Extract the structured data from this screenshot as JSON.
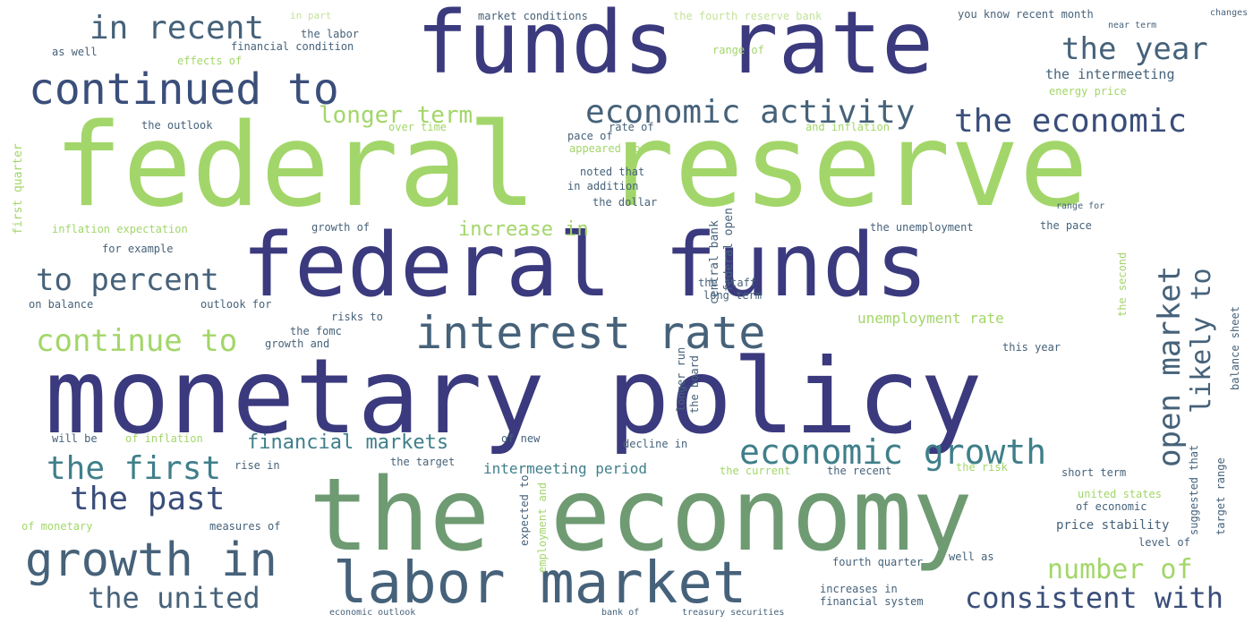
{
  "colors": {
    "indigo": "#3b3a7e",
    "navy": "#3a4e7a",
    "slate": "#46627a",
    "teal": "#3f7f8a",
    "sage": "#6f9b73",
    "lime": "#a3d66a",
    "pale": "#c4e29a"
  },
  "words": [
    {
      "text": "federal reserve",
      "color": "lime"
    },
    {
      "text": "monetary policy",
      "color": "indigo"
    },
    {
      "text": "the economy",
      "color": "sage"
    },
    {
      "text": "federal funds",
      "color": "indigo"
    },
    {
      "text": "funds rate",
      "color": "indigo"
    },
    {
      "text": "labor market",
      "color": "slate"
    },
    {
      "text": "continued to",
      "color": "navy"
    },
    {
      "text": "interest rate",
      "color": "slate"
    },
    {
      "text": "growth in",
      "color": "slate"
    },
    {
      "text": "economic growth",
      "color": "teal"
    },
    {
      "text": "economic activity",
      "color": "slate"
    },
    {
      "text": "the economic",
      "color": "navy"
    },
    {
      "text": "the year",
      "color": "slate"
    },
    {
      "text": "in recent",
      "color": "slate"
    },
    {
      "text": "to percent",
      "color": "slate"
    },
    {
      "text": "continue to",
      "color": "lime"
    },
    {
      "text": "the first",
      "color": "teal"
    },
    {
      "text": "the past",
      "color": "navy"
    },
    {
      "text": "the united",
      "color": "slate"
    },
    {
      "text": "consistent with",
      "color": "navy"
    },
    {
      "text": "number of",
      "color": "lime"
    },
    {
      "text": "open market",
      "color": "slate"
    },
    {
      "text": "likely to",
      "color": "slate"
    },
    {
      "text": "longer term",
      "color": "lime"
    },
    {
      "text": "financial markets",
      "color": "teal"
    },
    {
      "text": "increase in",
      "color": "lime"
    },
    {
      "text": "unemployment rate",
      "color": "lime"
    },
    {
      "text": "intermeeting period",
      "color": "teal"
    },
    {
      "text": "the intermeeting",
      "color": "slate"
    },
    {
      "text": "market conditions",
      "color": "slate"
    },
    {
      "text": "the fourth reserve bank",
      "color": "pale"
    },
    {
      "text": "you know recent month",
      "color": "slate"
    },
    {
      "text": "financial condition",
      "color": "slate"
    },
    {
      "text": "the labor",
      "color": "slate"
    },
    {
      "text": "in part",
      "color": "pale"
    },
    {
      "text": "as well",
      "color": "slate"
    },
    {
      "text": "effects of",
      "color": "lime"
    },
    {
      "text": "range of",
      "color": "lime"
    },
    {
      "text": "energy price",
      "color": "lime"
    },
    {
      "text": "the outlook",
      "color": "slate"
    },
    {
      "text": "over time",
      "color": "lime"
    },
    {
      "text": "rate of",
      "color": "slate"
    },
    {
      "text": "pace of",
      "color": "slate"
    },
    {
      "text": "appeared to",
      "color": "lime"
    },
    {
      "text": "and inflation",
      "color": "lime"
    },
    {
      "text": "noted that",
      "color": "slate"
    },
    {
      "text": "in addition",
      "color": "slate"
    },
    {
      "text": "the dollar",
      "color": "slate"
    },
    {
      "text": "central bank",
      "color": "slate"
    },
    {
      "text": "federal open",
      "color": "slate"
    },
    {
      "text": "first quarter",
      "color": "lime"
    },
    {
      "text": "inflation expectation",
      "color": "lime"
    },
    {
      "text": "growth of",
      "color": "slate"
    },
    {
      "text": "for example",
      "color": "slate"
    },
    {
      "text": "the unemployment",
      "color": "slate"
    },
    {
      "text": "the pace",
      "color": "slate"
    },
    {
      "text": "range for",
      "color": "slate"
    },
    {
      "text": "the staff",
      "color": "slate"
    },
    {
      "text": "long term",
      "color": "slate"
    },
    {
      "text": "on balance",
      "color": "slate"
    },
    {
      "text": "outlook for",
      "color": "slate"
    },
    {
      "text": "risks to",
      "color": "slate"
    },
    {
      "text": "the fomc",
      "color": "slate"
    },
    {
      "text": "growth and",
      "color": "slate"
    },
    {
      "text": "this year",
      "color": "slate"
    },
    {
      "text": "will be",
      "color": "slate"
    },
    {
      "text": "of inflation",
      "color": "lime"
    },
    {
      "text": "of new",
      "color": "slate"
    },
    {
      "text": "decline in",
      "color": "slate"
    },
    {
      "text": "rise in",
      "color": "slate"
    },
    {
      "text": "the target",
      "color": "slate"
    },
    {
      "text": "the current",
      "color": "lime"
    },
    {
      "text": "the recent",
      "color": "slate"
    },
    {
      "text": "the risk",
      "color": "lime"
    },
    {
      "text": "short term",
      "color": "slate"
    },
    {
      "text": "united states",
      "color": "lime"
    },
    {
      "text": "of economic",
      "color": "slate"
    },
    {
      "text": "price stability",
      "color": "slate"
    },
    {
      "text": "level of",
      "color": "slate"
    },
    {
      "text": "fourth quarter",
      "color": "slate"
    },
    {
      "text": "well as",
      "color": "slate"
    },
    {
      "text": "measures of",
      "color": "slate"
    },
    {
      "text": "of monetary",
      "color": "lime"
    },
    {
      "text": "expected to",
      "color": "slate"
    },
    {
      "text": "employment and",
      "color": "lime"
    },
    {
      "text": "increases in",
      "color": "slate"
    },
    {
      "text": "financial system",
      "color": "slate"
    },
    {
      "text": "economic outlook",
      "color": "slate"
    },
    {
      "text": "bank of",
      "color": "slate"
    },
    {
      "text": "treasury securities",
      "color": "slate"
    },
    {
      "text": "longer run",
      "color": "slate"
    },
    {
      "text": "the board",
      "color": "slate"
    },
    {
      "text": "suggested that",
      "color": "slate"
    },
    {
      "text": "target range",
      "color": "slate"
    },
    {
      "text": "the second",
      "color": "lime"
    },
    {
      "text": "balance sheet",
      "color": "slate"
    },
    {
      "text": "changes in",
      "color": "slate"
    },
    {
      "text": "near term",
      "color": "slate"
    }
  ]
}
